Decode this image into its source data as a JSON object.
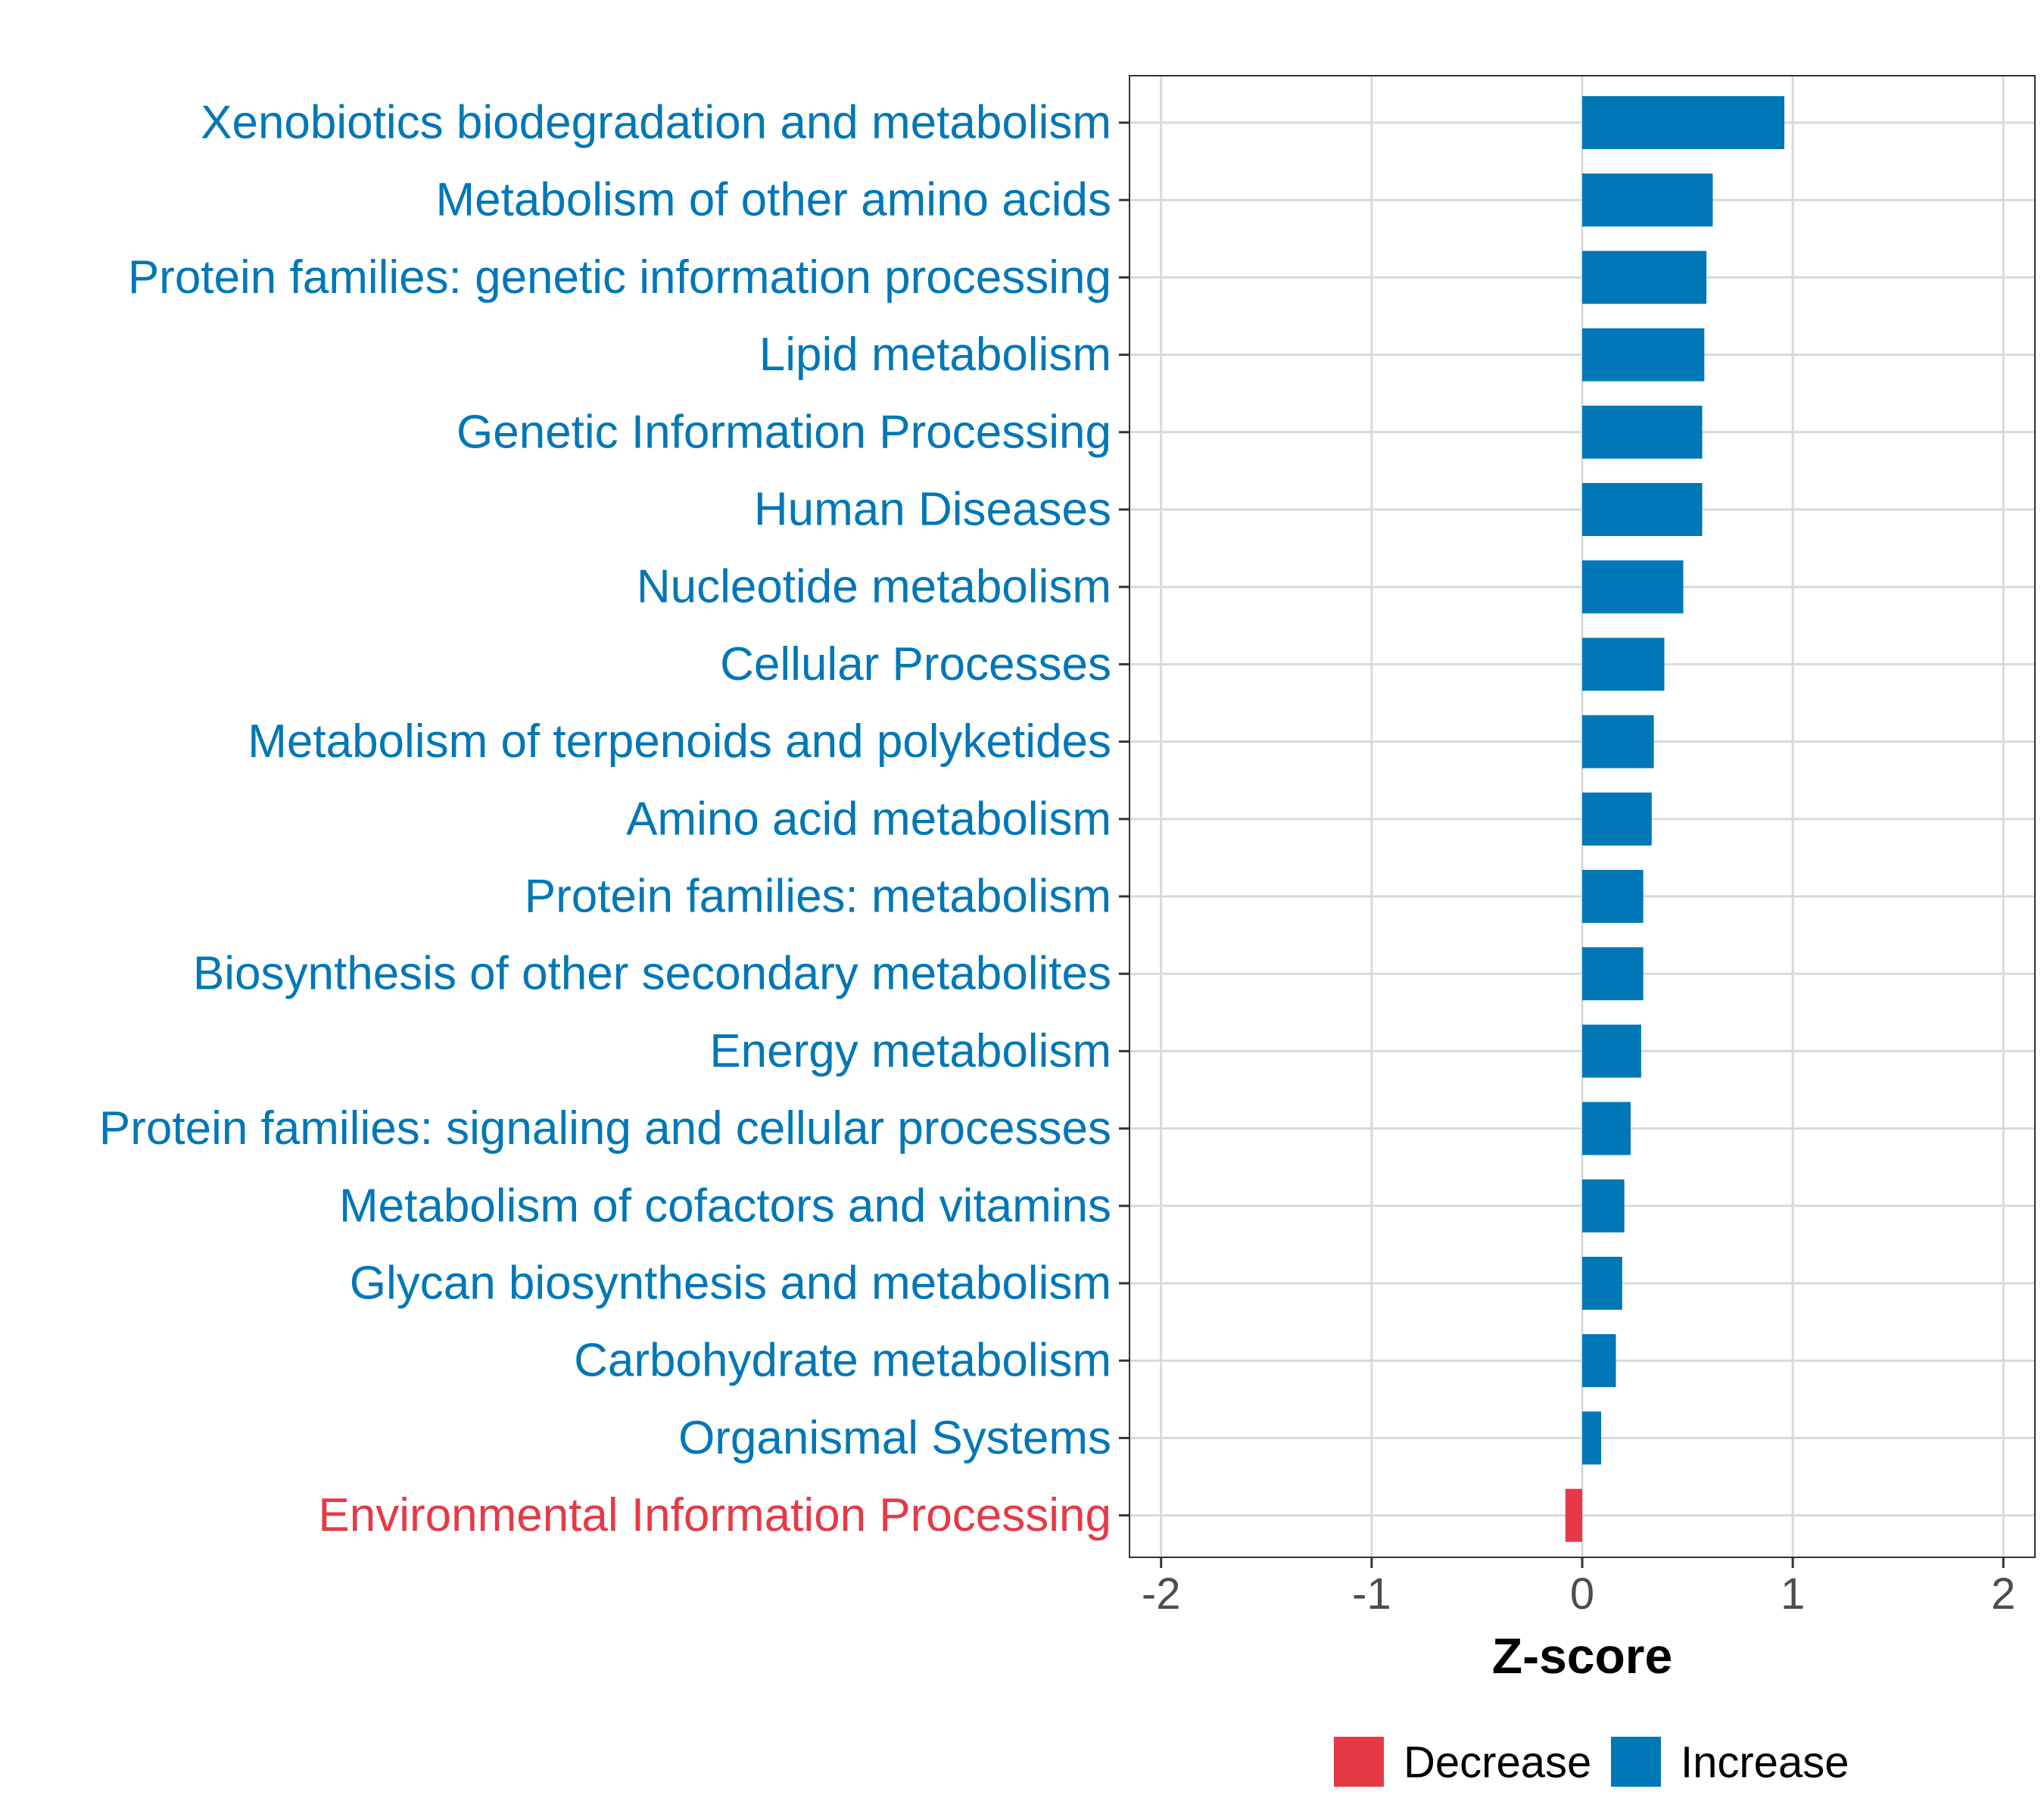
{
  "chart_data": {
    "type": "bar",
    "orientation": "horizontal",
    "xlabel": "Z-score",
    "ylabel": "",
    "xlim": [
      -2.15,
      2.15
    ],
    "xticks": [
      -2,
      -1,
      0,
      1,
      2
    ],
    "xtick_labels": [
      "-2",
      "-1",
      "0",
      "1",
      "2"
    ],
    "grid": true,
    "legend_position": "bottom",
    "colors": {
      "Decrease": "#e63946",
      "Increase": "#0077b6"
    },
    "legend": [
      {
        "label": "Decrease",
        "color": "#e63946"
      },
      {
        "label": "Increase",
        "color": "#0077b6"
      }
    ],
    "categories": [
      "Xenobiotics biodegradation and metabolism",
      "Metabolism of other amino acids",
      "Protein families: genetic information processing",
      "Lipid metabolism",
      "Genetic Information Processing",
      "Human Diseases",
      "Nucleotide metabolism",
      "Cellular Processes",
      "Metabolism of terpenoids and polyketides",
      "Amino acid metabolism",
      "Protein families: metabolism",
      "Biosynthesis of other secondary metabolites",
      "Energy metabolism",
      "Protein families: signaling and cellular processes",
      "Metabolism of cofactors and vitamins",
      "Glycan biosynthesis and metabolism",
      "Carbohydrate metabolism",
      "Organismal Systems",
      "Environmental Information Processing"
    ],
    "values": [
      0.96,
      0.62,
      0.59,
      0.58,
      0.57,
      0.57,
      0.48,
      0.39,
      0.34,
      0.33,
      0.29,
      0.29,
      0.28,
      0.23,
      0.2,
      0.19,
      0.16,
      0.09,
      -0.08
    ],
    "groups": [
      "Increase",
      "Increase",
      "Increase",
      "Increase",
      "Increase",
      "Increase",
      "Increase",
      "Increase",
      "Increase",
      "Increase",
      "Increase",
      "Increase",
      "Increase",
      "Increase",
      "Increase",
      "Increase",
      "Increase",
      "Increase",
      "Decrease"
    ]
  }
}
